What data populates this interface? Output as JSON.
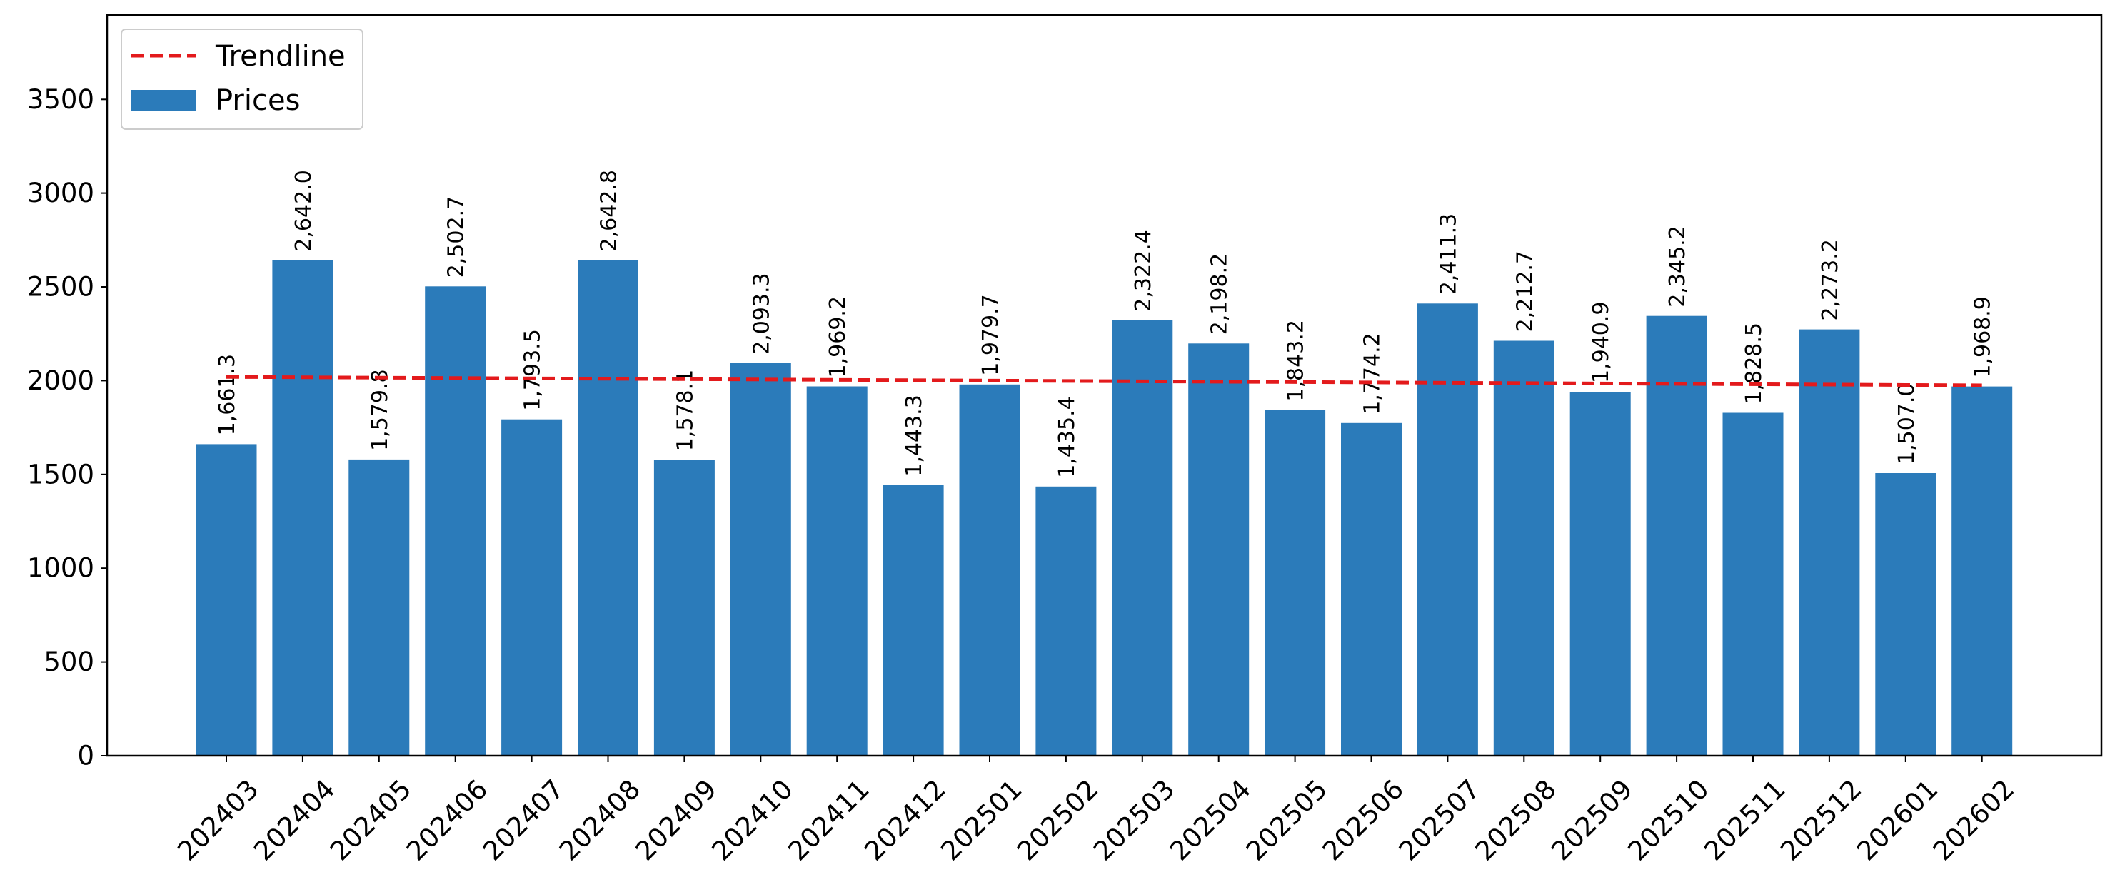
{
  "chart_data": {
    "type": "bar",
    "categories": [
      "202403",
      "202404",
      "202405",
      "202406",
      "202407",
      "202408",
      "202409",
      "202410",
      "202411",
      "202412",
      "202501",
      "202502",
      "202503",
      "202504",
      "202505",
      "202506",
      "202507",
      "202508",
      "202509",
      "202510",
      "202511",
      "202512",
      "202601",
      "202602"
    ],
    "series": [
      {
        "name": "Prices",
        "values": [
          1661.3,
          2642.0,
          1579.8,
          2502.7,
          1793.5,
          2642.8,
          1578.1,
          2093.3,
          1969.2,
          1443.3,
          1979.7,
          1435.4,
          2322.4,
          2198.2,
          1843.2,
          1774.2,
          2411.3,
          2212.7,
          1940.9,
          2345.2,
          1828.5,
          2273.2,
          1507.0,
          1968.9
        ],
        "labels": [
          "1,661.3",
          "2,642.0",
          "1,579.8",
          "2,502.7",
          "1,793.5",
          "2,642.8",
          "1,578.1",
          "2,093.3",
          "1,969.2",
          "1,443.3",
          "1,979.7",
          "1,435.4",
          "2,322.4",
          "2,198.2",
          "1,843.2",
          "1,774.2",
          "2,411.3",
          "2,212.7",
          "1,940.9",
          "2,345.2",
          "1,828.5",
          "2,273.2",
          "1,507.0",
          "1,968.9"
        ],
        "color": "#2b7bba"
      }
    ],
    "trendline": {
      "name": "Trendline",
      "start": 2020,
      "end": 1975,
      "color": "#e31a1c",
      "style": "dashed"
    },
    "ylim": [
      0,
      3950
    ],
    "yticks": [
      0,
      500,
      1000,
      1500,
      2000,
      2500,
      3000,
      3500
    ],
    "title": "",
    "xlabel": "",
    "ylabel": "",
    "legend_position": "top-left",
    "grid": false
  }
}
